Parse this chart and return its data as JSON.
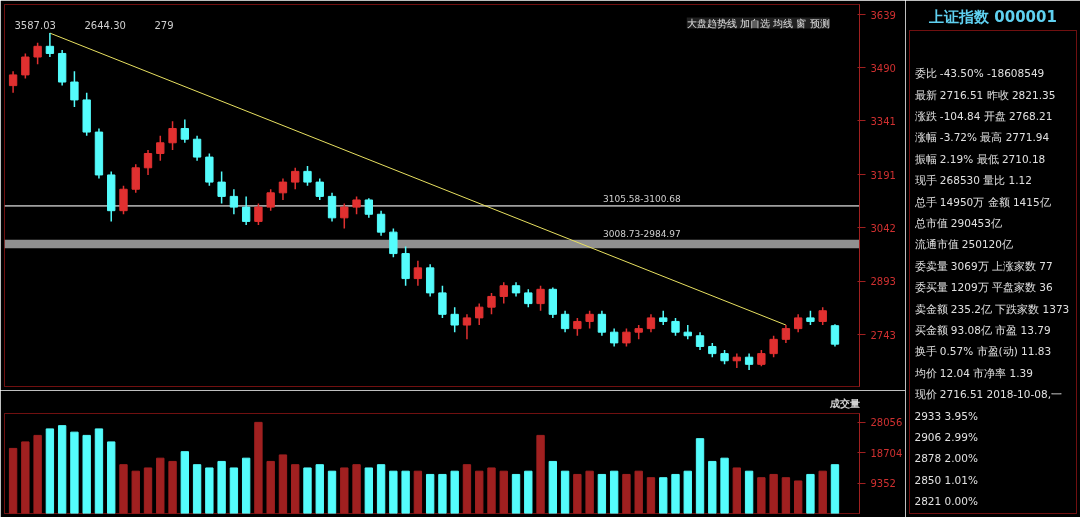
{
  "chart_data": [
    {
      "type": "candlestick",
      "categories": [
        null,
        null,
        null,
        null,
        null,
        null,
        null,
        null,
        null,
        null,
        null,
        null,
        null,
        null,
        null,
        null,
        null,
        null,
        null,
        null,
        null,
        null,
        null,
        null,
        null,
        null,
        null,
        null,
        null,
        null,
        null,
        null,
        null,
        null,
        null,
        null,
        null,
        null,
        null,
        null,
        null,
        null,
        null,
        null,
        null,
        null,
        null,
        null,
        null,
        null,
        null,
        null,
        null,
        null,
        null,
        null,
        null,
        null,
        null,
        null,
        null,
        null,
        null,
        null,
        null,
        null,
        null,
        null
      ],
      "ohlc": [
        [
          3440,
          3480,
          3420,
          3470
        ],
        [
          3470,
          3530,
          3460,
          3520
        ],
        [
          3520,
          3560,
          3500,
          3550
        ],
        [
          3550,
          3587,
          3520,
          3530
        ],
        [
          3530,
          3540,
          3440,
          3450
        ],
        [
          3450,
          3480,
          3380,
          3400
        ],
        [
          3400,
          3420,
          3300,
          3310
        ],
        [
          3310,
          3320,
          3180,
          3190
        ],
        [
          3190,
          3200,
          3060,
          3090
        ],
        [
          3090,
          3160,
          3080,
          3150
        ],
        [
          3150,
          3220,
          3140,
          3210
        ],
        [
          3210,
          3260,
          3190,
          3250
        ],
        [
          3250,
          3300,
          3230,
          3280
        ],
        [
          3280,
          3340,
          3260,
          3320
        ],
        [
          3320,
          3345,
          3280,
          3290
        ],
        [
          3290,
          3300,
          3230,
          3240
        ],
        [
          3240,
          3250,
          3160,
          3170
        ],
        [
          3170,
          3200,
          3110,
          3130
        ],
        [
          3130,
          3150,
          3080,
          3100
        ],
        [
          3100,
          3130,
          3050,
          3060
        ],
        [
          3060,
          3110,
          3050,
          3100
        ],
        [
          3100,
          3150,
          3090,
          3140
        ],
        [
          3140,
          3180,
          3120,
          3170
        ],
        [
          3170,
          3210,
          3150,
          3200
        ],
        [
          3200,
          3215,
          3160,
          3170
        ],
        [
          3170,
          3180,
          3120,
          3130
        ],
        [
          3130,
          3140,
          3060,
          3070
        ],
        [
          3070,
          3110,
          3040,
          3100
        ],
        [
          3100,
          3130,
          3080,
          3120
        ],
        [
          3120,
          3125,
          3070,
          3080
        ],
        [
          3080,
          3090,
          3020,
          3030
        ],
        [
          3030,
          3040,
          2960,
          2970
        ],
        [
          2970,
          2990,
          2880,
          2900
        ],
        [
          2900,
          2950,
          2880,
          2930
        ],
        [
          2930,
          2940,
          2850,
          2860
        ],
        [
          2860,
          2880,
          2790,
          2800
        ],
        [
          2800,
          2820,
          2750,
          2770
        ],
        [
          2770,
          2800,
          2730,
          2790
        ],
        [
          2790,
          2830,
          2770,
          2820
        ],
        [
          2820,
          2860,
          2800,
          2850
        ],
        [
          2850,
          2890,
          2830,
          2880
        ],
        [
          2880,
          2890,
          2850,
          2860
        ],
        [
          2860,
          2870,
          2820,
          2830
        ],
        [
          2830,
          2880,
          2810,
          2870
        ],
        [
          2870,
          2875,
          2790,
          2800
        ],
        [
          2800,
          2810,
          2750,
          2760
        ],
        [
          2760,
          2790,
          2740,
          2780
        ],
        [
          2780,
          2810,
          2760,
          2800
        ],
        [
          2800,
          2810,
          2740,
          2750
        ],
        [
          2750,
          2760,
          2710,
          2720
        ],
        [
          2720,
          2760,
          2710,
          2750
        ],
        [
          2750,
          2770,
          2730,
          2760
        ],
        [
          2760,
          2800,
          2750,
          2790
        ],
        [
          2790,
          2810,
          2770,
          2780
        ],
        [
          2780,
          2790,
          2740,
          2750
        ],
        [
          2750,
          2770,
          2730,
          2740
        ],
        [
          2740,
          2750,
          2700,
          2710
        ],
        [
          2710,
          2720,
          2680,
          2690
        ],
        [
          2690,
          2700,
          2660,
          2670
        ],
        [
          2670,
          2690,
          2650,
          2680
        ],
        [
          2680,
          2690,
          2644.3,
          2660
        ],
        [
          2660,
          2700,
          2655,
          2690
        ],
        [
          2690,
          2740,
          2680,
          2730
        ],
        [
          2730,
          2770,
          2720,
          2760
        ],
        [
          2760,
          2800,
          2750,
          2790
        ],
        [
          2790,
          2810,
          2770,
          2780
        ],
        [
          2780,
          2820,
          2770,
          2810
        ],
        [
          2768.21,
          2771.94,
          2710.18,
          2716.51
        ]
      ],
      "colors": [
        "#e03030",
        "#e03030",
        "#e03030",
        "#54fcfc",
        "#54fcfc",
        "#54fcfc",
        "#54fcfc",
        "#54fcfc",
        "#54fcfc",
        "#e03030",
        "#e03030",
        "#e03030",
        "#e03030",
        "#e03030",
        "#54fcfc",
        "#54fcfc",
        "#54fcfc",
        "#54fcfc",
        "#54fcfc",
        "#54fcfc",
        "#e03030",
        "#e03030",
        "#e03030",
        "#e03030",
        "#54fcfc",
        "#54fcfc",
        "#54fcfc",
        "#e03030",
        "#e03030",
        "#54fcfc",
        "#54fcfc",
        "#54fcfc",
        "#54fcfc",
        "#e03030",
        "#54fcfc",
        "#54fcfc",
        "#54fcfc",
        "#e03030",
        "#e03030",
        "#e03030",
        "#e03030",
        "#54fcfc",
        "#54fcfc",
        "#e03030",
        "#54fcfc",
        "#54fcfc",
        "#e03030",
        "#e03030",
        "#54fcfc",
        "#54fcfc",
        "#e03030",
        "#e03030",
        "#e03030",
        "#54fcfc",
        "#54fcfc",
        "#54fcfc",
        "#54fcfc",
        "#54fcfc",
        "#54fcfc",
        "#e03030",
        "#54fcfc",
        "#e03030",
        "#e03030",
        "#e03030",
        "#e03030",
        "#54fcfc",
        "#e03030",
        "#54fcfc"
      ],
      "series": [
        {
          "type": "line",
          "color": "#e8e060",
          "values": [
            null,
            null,
            null,
            3587,
            null,
            null,
            null,
            null,
            null,
            null,
            null,
            null,
            null,
            null,
            null,
            null,
            null,
            null,
            null,
            null,
            null,
            null,
            null,
            null,
            null,
            null,
            null,
            null,
            null,
            null,
            null,
            null,
            null,
            null,
            null,
            null,
            null,
            null,
            null,
            null,
            null,
            null,
            null,
            null,
            null,
            null,
            null,
            null,
            null,
            null,
            null,
            null,
            null,
            null,
            null,
            null,
            null,
            null,
            null,
            null,
            null,
            null,
            null,
            2770,
            null,
            null,
            null,
            null
          ]
        }
      ],
      "ylim": [
        2598,
        3667
      ],
      "yticks": [
        3639,
        3490,
        3341,
        3191,
        3042,
        2893,
        2743
      ],
      "bands": [
        {
          "axis": "y",
          "from": 3100.68,
          "to": 3105.58,
          "label": "3105.58-3100.68",
          "color": "#b0b0b0"
        },
        {
          "axis": "y",
          "from": 2984.97,
          "to": 3008.73,
          "label": "3008.73-2984.97",
          "color": "#a0a0a0"
        }
      ],
      "annotations": [
        "3587.03",
        "2644.30",
        "279",
        "大盘趋势线 加自选 均线 窗 预测"
      ],
      "grid": false,
      "tick_labels": "y"
    },
    {
      "type": "bar",
      "title": "成交量",
      "categories": [
        null,
        null,
        null,
        null,
        null,
        null,
        null,
        null,
        null,
        null,
        null,
        null,
        null,
        null,
        null,
        null,
        null,
        null,
        null,
        null,
        null,
        null,
        null,
        null,
        null,
        null,
        null,
        null,
        null,
        null,
        null,
        null,
        null,
        null,
        null,
        null,
        null,
        null,
        null,
        null,
        null,
        null,
        null,
        null,
        null,
        null,
        null,
        null,
        null,
        null,
        null,
        null,
        null,
        null,
        null,
        null,
        null,
        null,
        null,
        null,
        null,
        null,
        null,
        null,
        null,
        null,
        null,
        null
      ],
      "values": [
        20000,
        22000,
        24000,
        26000,
        27000,
        25000,
        24000,
        26000,
        22000,
        15000,
        13000,
        14000,
        17000,
        16000,
        19000,
        15000,
        14000,
        16000,
        14000,
        17000,
        28000,
        16000,
        18000,
        15000,
        14000,
        15000,
        13000,
        14000,
        15000,
        14000,
        15000,
        13000,
        13000,
        13000,
        12000,
        12000,
        13000,
        15000,
        13000,
        14000,
        13000,
        12000,
        13000,
        24000,
        16000,
        13000,
        12000,
        13000,
        12000,
        13000,
        12000,
        13000,
        11000,
        11000,
        12000,
        13000,
        23000,
        16000,
        17000,
        14000,
        13000,
        11000,
        12000,
        11000,
        10000,
        12000,
        13000,
        15000
      ],
      "colors": [
        "#a02020",
        "#a02020",
        "#a02020",
        "#54fcfc",
        "#54fcfc",
        "#54fcfc",
        "#54fcfc",
        "#54fcfc",
        "#54fcfc",
        "#a02020",
        "#a02020",
        "#a02020",
        "#a02020",
        "#a02020",
        "#54fcfc",
        "#54fcfc",
        "#54fcfc",
        "#54fcfc",
        "#54fcfc",
        "#54fcfc",
        "#a02020",
        "#a02020",
        "#a02020",
        "#a02020",
        "#54fcfc",
        "#54fcfc",
        "#54fcfc",
        "#a02020",
        "#a02020",
        "#54fcfc",
        "#54fcfc",
        "#54fcfc",
        "#54fcfc",
        "#a02020",
        "#54fcfc",
        "#54fcfc",
        "#54fcfc",
        "#a02020",
        "#a02020",
        "#a02020",
        "#a02020",
        "#54fcfc",
        "#54fcfc",
        "#a02020",
        "#54fcfc",
        "#54fcfc",
        "#a02020",
        "#a02020",
        "#54fcfc",
        "#54fcfc",
        "#a02020",
        "#a02020",
        "#a02020",
        "#54fcfc",
        "#54fcfc",
        "#54fcfc",
        "#54fcfc",
        "#54fcfc",
        "#54fcfc",
        "#a02020",
        "#54fcfc",
        "#a02020",
        "#a02020",
        "#a02020",
        "#a02020",
        "#54fcfc",
        "#a02020",
        "#54fcfc"
      ],
      "ylim": [
        0,
        30728
      ],
      "yticks": [
        9352,
        18704,
        28056
      ],
      "grid": false,
      "tick_labels": "y"
    },
    {
      "type": "other",
      "title": "上证指数 000001",
      "annotations": [
        "委比 -43.50% -18608549",
        "最新 2716.51 昨收 2821.35",
        "涨跌 -104.84 开盘 2768.21",
        "涨幅 -3.72% 最高 2771.94",
        "振幅 2.19% 最低 2710.18",
        "现手 268530 量比 1.12",
        "总手 14950万 金额 1415亿",
        "总市值 290453亿",
        "流通市值 250120亿",
        "委卖量 3069万 上涨家数 77",
        "委买量 1209万 平盘家数 36",
        "卖金额 235.2亿 下跌家数 1373",
        "买金额 93.08亿 市盈 13.79",
        "换手 0.57% 市盈(动) 11.83",
        "均价 12.04 市净率 1.39",
        "现价 2716.51 2018-10-08,一",
        "2933 3.95%",
        "2906 2.99%",
        "2878 2.00%",
        "2850 1.01%",
        "2821 0.00%"
      ]
    }
  ]
}
